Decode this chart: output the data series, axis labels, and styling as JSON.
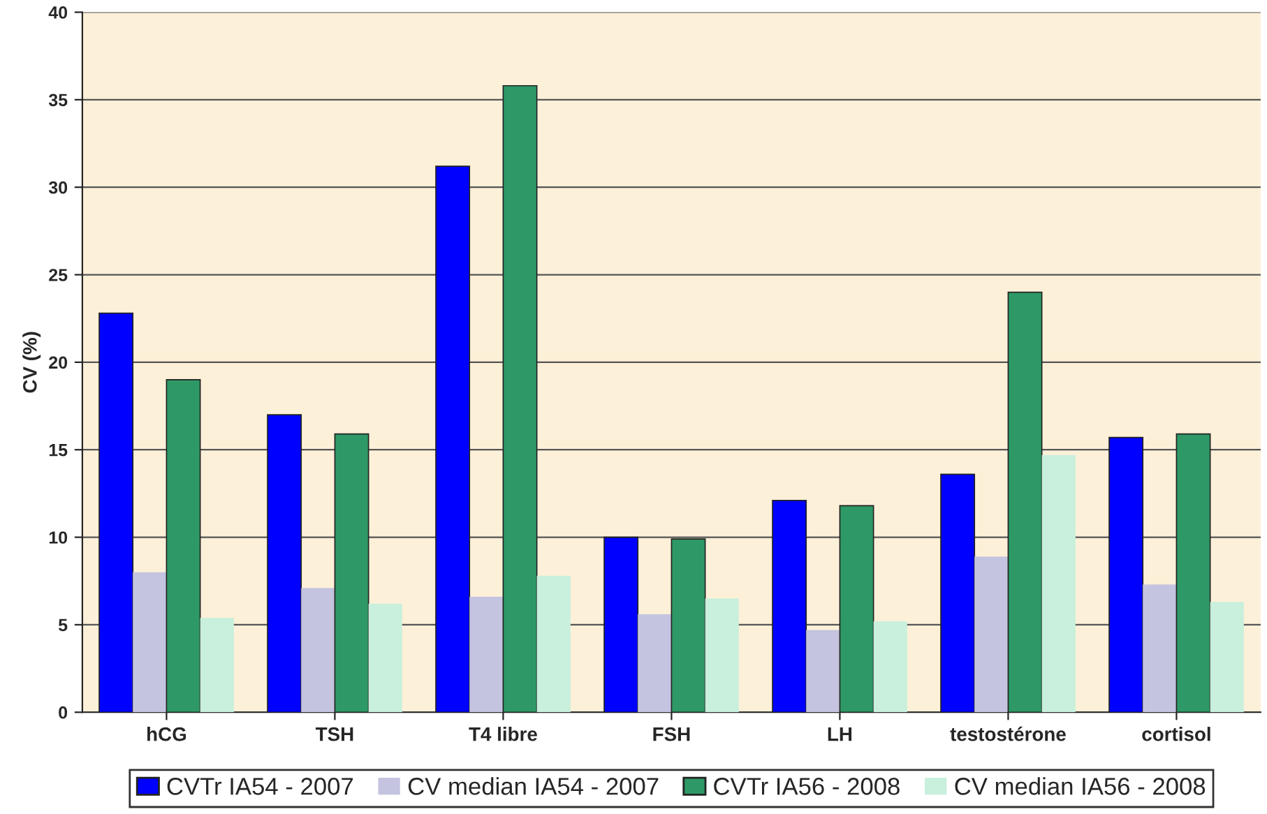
{
  "chart_data": {
    "type": "bar",
    "ylabel": "CV (%)",
    "categories": [
      "hCG",
      "TSH",
      "T4 libre",
      "FSH",
      "LH",
      "testostérone",
      "cortisol"
    ],
    "series": [
      {
        "name": "CVTr IA54 - 2007",
        "color": "#0000ff",
        "values": [
          22.8,
          17.0,
          31.2,
          10.0,
          12.1,
          13.6,
          15.7
        ]
      },
      {
        "name": "CV median IA54 - 2007",
        "color": "#c4c4e0",
        "values": [
          8.0,
          7.1,
          6.6,
          5.6,
          4.7,
          8.9,
          7.3
        ]
      },
      {
        "name": "CVTr IA56 - 2008",
        "color": "#2e9966",
        "values": [
          19.0,
          15.9,
          35.8,
          9.9,
          11.8,
          24.0,
          15.9
        ]
      },
      {
        "name": "CV median IA56 - 2008",
        "color": "#c8f0dc",
        "values": [
          5.4,
          6.2,
          7.8,
          6.5,
          5.2,
          14.7,
          6.3
        ]
      }
    ],
    "ylim": [
      0,
      40
    ],
    "yticks": [
      0,
      5,
      10,
      15,
      20,
      25,
      30,
      35,
      40
    ],
    "grid": "y",
    "legend": "bottom"
  }
}
